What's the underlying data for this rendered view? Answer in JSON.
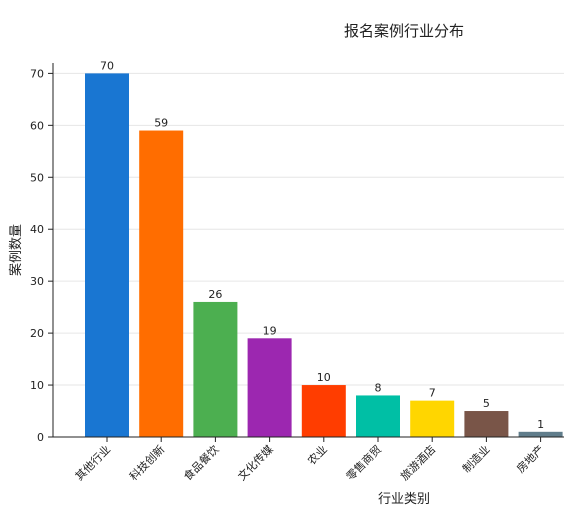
{
  "chart_data": {
    "type": "bar",
    "title": "报名案例行业分布",
    "xlabel": "行业类别",
    "ylabel": "案例数量",
    "categories": [
      "其他行业",
      "科技创新",
      "食品餐饮",
      "文化传媒",
      "农业",
      "零售商贸",
      "旅游酒店",
      "制造业",
      "房地产"
    ],
    "values": [
      70,
      59,
      26,
      19,
      10,
      8,
      7,
      5,
      1
    ],
    "colors": [
      "#1976d2",
      "#ff6d00",
      "#4caf50",
      "#9c27b0",
      "#ff3d00",
      "#00bfa5",
      "#ffd600",
      "#795548",
      "#607d8b"
    ],
    "ylim": [
      0,
      72
    ],
    "yticks": [
      0,
      10,
      20,
      30,
      40,
      50,
      60,
      70
    ],
    "grid": "horizontal",
    "data_labels": true,
    "legend": "none"
  }
}
